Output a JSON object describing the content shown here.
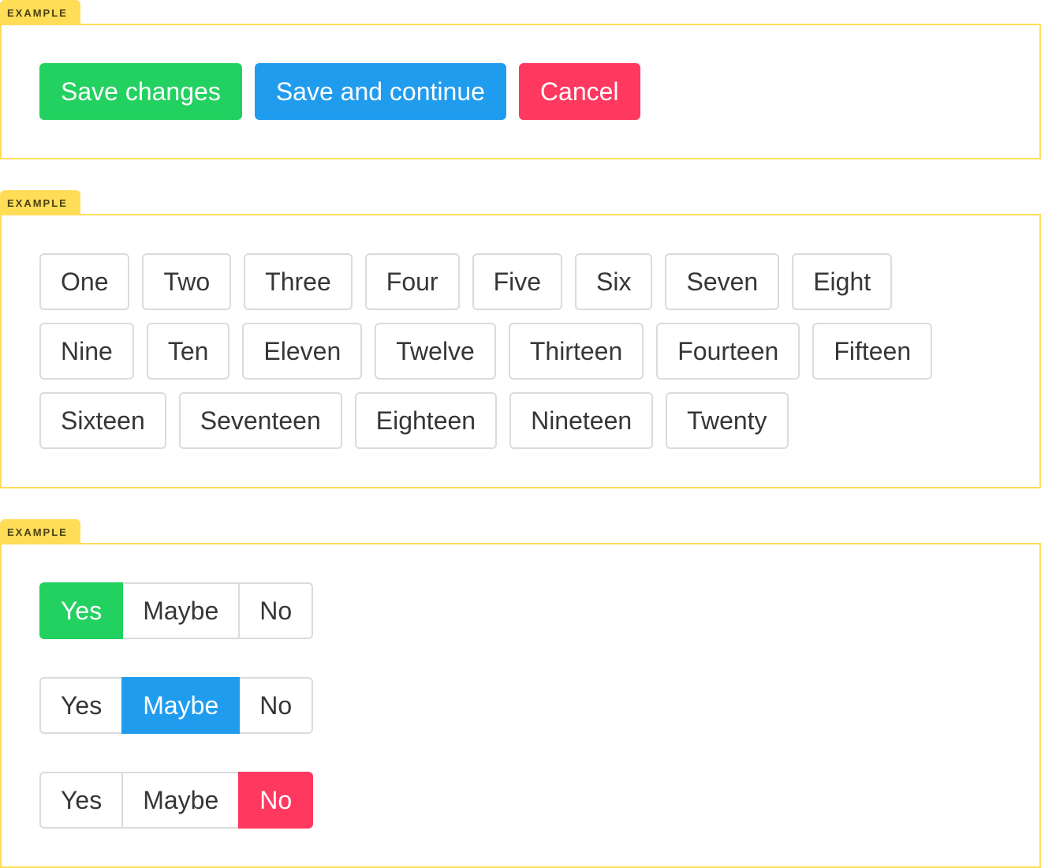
{
  "examples": [
    {
      "label": "EXAMPLE",
      "buttons": [
        {
          "label": "Save changes",
          "color": "#23d160"
        },
        {
          "label": "Save and continue",
          "color": "#209cee"
        },
        {
          "label": "Cancel",
          "color": "#ff3860"
        }
      ]
    },
    {
      "label": "EXAMPLE",
      "buttons": [
        {
          "label": "One"
        },
        {
          "label": "Two"
        },
        {
          "label": "Three"
        },
        {
          "label": "Four"
        },
        {
          "label": "Five"
        },
        {
          "label": "Six"
        },
        {
          "label": "Seven"
        },
        {
          "label": "Eight"
        },
        {
          "label": "Nine"
        },
        {
          "label": "Ten"
        },
        {
          "label": "Eleven"
        },
        {
          "label": "Twelve"
        },
        {
          "label": "Thirteen"
        },
        {
          "label": "Fourteen"
        },
        {
          "label": "Fifteen"
        },
        {
          "label": "Sixteen"
        },
        {
          "label": "Seventeen"
        },
        {
          "label": "Eighteen"
        },
        {
          "label": "Nineteen"
        },
        {
          "label": "Twenty"
        }
      ]
    },
    {
      "label": "EXAMPLE",
      "groups": [
        {
          "buttons": [
            {
              "label": "Yes",
              "color": "#23d160"
            },
            {
              "label": "Maybe"
            },
            {
              "label": "No"
            }
          ]
        },
        {
          "buttons": [
            {
              "label": "Yes"
            },
            {
              "label": "Maybe",
              "color": "#209cee"
            },
            {
              "label": "No"
            }
          ]
        },
        {
          "buttons": [
            {
              "label": "Yes"
            },
            {
              "label": "Maybe"
            },
            {
              "label": "No",
              "color": "#ff3860"
            }
          ]
        }
      ]
    }
  ]
}
